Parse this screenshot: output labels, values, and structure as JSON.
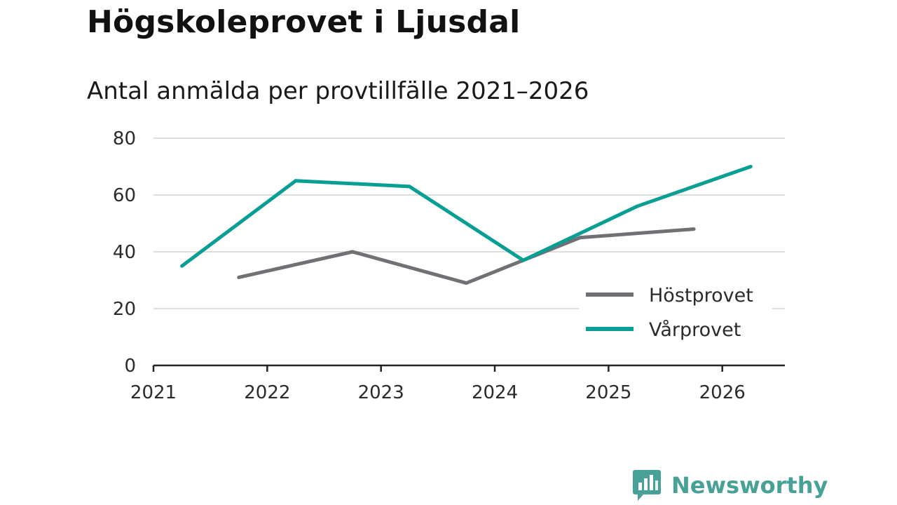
{
  "title": "Högskoleprovet i Ljusdal",
  "subtitle": "Antal anmälda per provtillfälle 2021–2026",
  "brand": {
    "name": "Newsworthy",
    "icon": "bar-chart-speech-bubble-icon",
    "color": "#47a197"
  },
  "chart_data": {
    "type": "line",
    "title": "Antal anmälda per provtillfälle 2021–2026",
    "xlabel": "",
    "ylabel": "",
    "xlim": [
      2021,
      2026.55
    ],
    "ylim": [
      0,
      80
    ],
    "yticks": [
      0,
      20,
      40,
      60,
      80
    ],
    "xticks": [
      2021,
      2022,
      2023,
      2024,
      2025,
      2026
    ],
    "xticklabels": [
      "2021",
      "2022",
      "2023",
      "2024",
      "2025",
      "2026"
    ],
    "grid": true,
    "legend_position": "bottom-right",
    "series": [
      {
        "name": "Höstprovet",
        "color": "#717074",
        "x": [
          2021.75,
          2022.75,
          2023.75,
          2024.75,
          2025.75
        ],
        "values": [
          31,
          40,
          29,
          45,
          48
        ]
      },
      {
        "name": "Vårprovet",
        "color": "#079e94",
        "x": [
          2021.25,
          2022.25,
          2023.25,
          2024.25,
          2025.25,
          2026.25
        ],
        "values": [
          35,
          65,
          63,
          37,
          56,
          70
        ]
      }
    ]
  }
}
